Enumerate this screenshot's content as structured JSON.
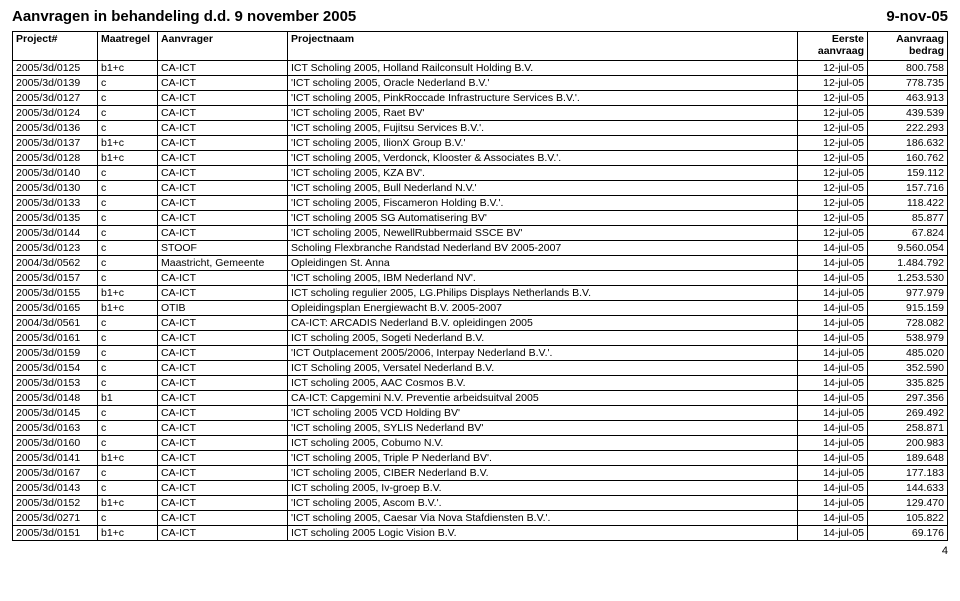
{
  "header": {
    "title_left": "Aanvragen in behandeling    d.d. 9 november 2005",
    "title_right": "9-nov-05"
  },
  "columns": {
    "project": "Project#",
    "maatregel": "Maatregel",
    "aanvrager": "Aanvrager",
    "projectnaam": "Projectnaam",
    "eerste": "Eerste",
    "eerste_sub": "aanvraag",
    "aanvraag": "Aanvraag",
    "aanvraag_sub": "bedrag"
  },
  "rows": [
    {
      "p": "2005/3d/0125",
      "m": "b1+c",
      "a": "CA-ICT",
      "n": "ICT Scholing 2005, Holland Railconsult Holding B.V.",
      "d": "12-jul-05",
      "amt": "800.758"
    },
    {
      "p": "2005/3d/0139",
      "m": "c",
      "a": "CA-ICT",
      "n": "'ICT scholing 2005, Oracle Nederland B.V.'",
      "d": "12-jul-05",
      "amt": "778.735"
    },
    {
      "p": "2005/3d/0127",
      "m": "c",
      "a": "CA-ICT",
      "n": "'ICT scholing 2005, PinkRoccade Infrastructure Services B.V.'.",
      "d": "12-jul-05",
      "amt": "463.913"
    },
    {
      "p": "2005/3d/0124",
      "m": "c",
      "a": "CA-ICT",
      "n": "'ICT scholing 2005, Raet BV'",
      "d": "12-jul-05",
      "amt": "439.539"
    },
    {
      "p": "2005/3d/0136",
      "m": "c",
      "a": "CA-ICT",
      "n": "'ICT scholing 2005, Fujitsu Services B.V.'.",
      "d": "12-jul-05",
      "amt": "222.293"
    },
    {
      "p": "2005/3d/0137",
      "m": "b1+c",
      "a": "CA-ICT",
      "n": "'ICT scholing 2005, IlionX Group B.V.'",
      "d": "12-jul-05",
      "amt": "186.632"
    },
    {
      "p": "2005/3d/0128",
      "m": "b1+c",
      "a": "CA-ICT",
      "n": "'ICT scholing 2005, Verdonck, Klooster & Associates B.V.'.",
      "d": "12-jul-05",
      "amt": "160.762"
    },
    {
      "p": "2005/3d/0140",
      "m": "c",
      "a": "CA-ICT",
      "n": "'ICT scholing 2005, KZA BV'.",
      "d": "12-jul-05",
      "amt": "159.112"
    },
    {
      "p": "2005/3d/0130",
      "m": "c",
      "a": "CA-ICT",
      "n": "'ICT scholing 2005, Bull Nederland N.V.'",
      "d": "12-jul-05",
      "amt": "157.716"
    },
    {
      "p": "2005/3d/0133",
      "m": "c",
      "a": "CA-ICT",
      "n": "'ICT scholing 2005, Fiscameron Holding B.V.'.",
      "d": "12-jul-05",
      "amt": "118.422"
    },
    {
      "p": "2005/3d/0135",
      "m": "c",
      "a": "CA-ICT",
      "n": "'ICT scholing 2005 SG Automatisering BV'",
      "d": "12-jul-05",
      "amt": "85.877"
    },
    {
      "p": "2005/3d/0144",
      "m": "c",
      "a": "CA-ICT",
      "n": "'ICT scholing 2005, NewellRubbermaid SSCE BV'",
      "d": "12-jul-05",
      "amt": "67.824"
    },
    {
      "p": "2005/3d/0123",
      "m": "c",
      "a": "STOOF",
      "n": "Scholing Flexbranche Randstad Nederland BV 2005-2007",
      "d": "14-jul-05",
      "amt": "9.560.054"
    },
    {
      "p": "2004/3d/0562",
      "m": "c",
      "a": "Maastricht, Gemeente",
      "n": "Opleidingen St. Anna",
      "d": "14-jul-05",
      "amt": "1.484.792"
    },
    {
      "p": "2005/3d/0157",
      "m": "c",
      "a": "CA-ICT",
      "n": "'ICT scholing 2005, IBM Nederland NV'.",
      "d": "14-jul-05",
      "amt": "1.253.530"
    },
    {
      "p": "2005/3d/0155",
      "m": "b1+c",
      "a": "CA-ICT",
      "n": "ICT scholing regulier 2005, LG.Philips Displays Netherlands B.V.",
      "d": "14-jul-05",
      "amt": "977.979"
    },
    {
      "p": "2005/3d/0165",
      "m": "b1+c",
      "a": "OTIB",
      "n": "Opleidingsplan Energiewacht B.V. 2005-2007",
      "d": "14-jul-05",
      "amt": "915.159"
    },
    {
      "p": "2004/3d/0561",
      "m": "c",
      "a": "CA-ICT",
      "n": "CA-ICT: ARCADIS Nederland B.V. opleidingen 2005",
      "d": "14-jul-05",
      "amt": "728.082"
    },
    {
      "p": "2005/3d/0161",
      "m": "c",
      "a": "CA-ICT",
      "n": "ICT scholing 2005, Sogeti Nederland B.V.",
      "d": "14-jul-05",
      "amt": "538.979"
    },
    {
      "p": "2005/3d/0159",
      "m": "c",
      "a": "CA-ICT",
      "n": "'ICT Outplacement 2005/2006, Interpay Nederland B.V.'.",
      "d": "14-jul-05",
      "amt": "485.020"
    },
    {
      "p": "2005/3d/0154",
      "m": "c",
      "a": "CA-ICT",
      "n": "ICT Scholing 2005, Versatel Nederland B.V.",
      "d": "14-jul-05",
      "amt": "352.590"
    },
    {
      "p": "2005/3d/0153",
      "m": "c",
      "a": "CA-ICT",
      "n": "ICT scholing 2005, AAC Cosmos B.V.",
      "d": "14-jul-05",
      "amt": "335.825"
    },
    {
      "p": "2005/3d/0148",
      "m": "b1",
      "a": "CA-ICT",
      "n": "CA-ICT: Capgemini N.V. Preventie arbeidsuitval 2005",
      "d": "14-jul-05",
      "amt": "297.356"
    },
    {
      "p": "2005/3d/0145",
      "m": "c",
      "a": "CA-ICT",
      "n": "'ICT scholing 2005 VCD Holding BV'",
      "d": "14-jul-05",
      "amt": "269.492"
    },
    {
      "p": "2005/3d/0163",
      "m": "c",
      "a": "CA-ICT",
      "n": "'ICT scholing 2005, SYLIS Nederland BV'",
      "d": "14-jul-05",
      "amt": "258.871"
    },
    {
      "p": "2005/3d/0160",
      "m": "c",
      "a": "CA-ICT",
      "n": "ICT scholing 2005, Cobumo N.V.",
      "d": "14-jul-05",
      "amt": "200.983"
    },
    {
      "p": "2005/3d/0141",
      "m": "b1+c",
      "a": "CA-ICT",
      "n": "'ICT scholing 2005, Triple P Nederland BV'.",
      "d": "14-jul-05",
      "amt": "189.648"
    },
    {
      "p": "2005/3d/0167",
      "m": "c",
      "a": "CA-ICT",
      "n": "'ICT scholing 2005, CIBER Nederland B.V.",
      "d": "14-jul-05",
      "amt": "177.183"
    },
    {
      "p": "2005/3d/0143",
      "m": "c",
      "a": "CA-ICT",
      "n": "ICT scholing 2005, Iv-groep B.V.",
      "d": "14-jul-05",
      "amt": "144.633"
    },
    {
      "p": "2005/3d/0152",
      "m": "b1+c",
      "a": "CA-ICT",
      "n": "'ICT scholing 2005, Ascom B.V.'.",
      "d": "14-jul-05",
      "amt": "129.470"
    },
    {
      "p": "2005/3d/0271",
      "m": "c",
      "a": "CA-ICT",
      "n": "'ICT scholing 2005, Caesar Via Nova Stafdiensten B.V.'.",
      "d": "14-jul-05",
      "amt": "105.822"
    },
    {
      "p": "2005/3d/0151",
      "m": "b1+c",
      "a": "CA-ICT",
      "n": "ICT scholing 2005 Logic Vision B.V.",
      "d": "14-jul-05",
      "amt": "69.176"
    }
  ],
  "page_number": "4"
}
